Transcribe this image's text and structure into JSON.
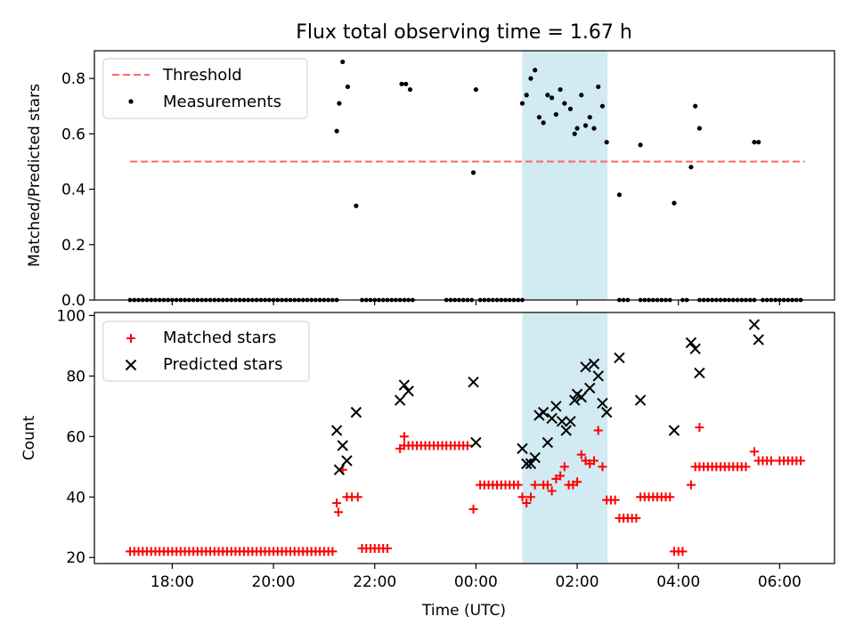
{
  "chart_data": {
    "title": "Flux total observing time = 1.67 h",
    "xlabel": "Time (UTC)",
    "x_ticks": [
      "18:00",
      "20:00",
      "22:00",
      "00:00",
      "02:00",
      "04:00",
      "06:00"
    ],
    "highlight_span": {
      "start": "00:55",
      "end": "02:36",
      "color": "#add8e6"
    },
    "panels": [
      {
        "type": "scatter",
        "ylabel": "Matched/Predicted stars",
        "ylim": [
          0.0,
          0.9
        ],
        "y_ticks": [
          "0.0",
          "0.2",
          "0.4",
          "0.6",
          "0.8"
        ],
        "legend": {
          "placement": "upper-left",
          "entries": [
            {
              "label": "Threshold",
              "style": "dashed-line",
              "color": "#ff6666"
            },
            {
              "label": "Measurements",
              "style": "dot",
              "color": "#000000"
            }
          ]
        },
        "threshold": {
          "value": 0.5,
          "x_start": "17:10",
          "x_end": "06:30",
          "color": "#ff6666"
        },
        "measurements_color": "#000000",
        "zero_run_ranges": [
          [
            "17:10",
            "21:15"
          ],
          [
            "21:45",
            "22:45"
          ],
          [
            "23:25",
            "23:55"
          ],
          [
            "00:05",
            "00:55"
          ],
          [
            "02:50",
            "03:00"
          ],
          [
            "03:15",
            "03:50"
          ],
          [
            "04:05",
            "04:10"
          ],
          [
            "04:25",
            "05:30"
          ],
          [
            "05:40",
            "06:25"
          ]
        ],
        "measurements": [
          [
            "21:15",
            0.61
          ],
          [
            "21:18",
            0.71
          ],
          [
            "21:22",
            0.86
          ],
          [
            "21:28",
            0.77
          ],
          [
            "21:38",
            0.34
          ],
          [
            "22:32",
            0.78
          ],
          [
            "22:37",
            0.78
          ],
          [
            "22:42",
            0.76
          ],
          [
            "23:57",
            0.46
          ],
          [
            "24:00",
            0.76
          ],
          [
            "24:55",
            0.71
          ],
          [
            "25:00",
            0.74
          ],
          [
            "25:05",
            0.8
          ],
          [
            "25:10",
            0.83
          ],
          [
            "25:15",
            0.66
          ],
          [
            "25:20",
            0.64
          ],
          [
            "25:25",
            0.74
          ],
          [
            "25:30",
            0.73
          ],
          [
            "25:35",
            0.67
          ],
          [
            "25:40",
            0.76
          ],
          [
            "25:45",
            0.71
          ],
          [
            "25:52",
            0.69
          ],
          [
            "25:57",
            0.6
          ],
          [
            "26:00",
            0.62
          ],
          [
            "26:05",
            0.74
          ],
          [
            "26:10",
            0.63
          ],
          [
            "26:15",
            0.66
          ],
          [
            "26:20",
            0.62
          ],
          [
            "26:25",
            0.77
          ],
          [
            "26:30",
            0.7
          ],
          [
            "26:35",
            0.57
          ],
          [
            "26:50",
            0.38
          ],
          [
            "27:15",
            0.56
          ],
          [
            "27:55",
            0.35
          ],
          [
            "28:15",
            0.48
          ],
          [
            "28:20",
            0.7
          ],
          [
            "28:25",
            0.62
          ],
          [
            "29:30",
            0.57
          ],
          [
            "29:35",
            0.57
          ]
        ]
      },
      {
        "type": "scatter",
        "ylabel": "Count",
        "ylim": [
          18,
          101
        ],
        "y_ticks": [
          "20",
          "40",
          "60",
          "80",
          "100"
        ],
        "legend": {
          "placement": "upper-left",
          "entries": [
            {
              "label": "Matched stars",
              "style": "plus",
              "color": "#ff0000"
            },
            {
              "label": "Predicted stars",
              "style": "x",
              "color": "#000000"
            }
          ]
        },
        "matched_runs": [
          {
            "from": "17:10",
            "to": "21:10",
            "value": 22
          },
          {
            "from": "21:45",
            "to": "22:15",
            "value": 23
          },
          {
            "from": "22:35",
            "to": "23:50",
            "value": 57
          },
          {
            "from": "00:05",
            "to": "00:50",
            "value": 44
          },
          {
            "from": "02:35",
            "to": "02:45",
            "value": 39
          },
          {
            "from": "02:50",
            "to": "03:10",
            "value": 33
          },
          {
            "from": "03:15",
            "to": "03:50",
            "value": 40
          },
          {
            "from": "03:55",
            "to": "04:05",
            "value": 22
          },
          {
            "from": "04:20",
            "to": "05:20",
            "value": 50
          },
          {
            "from": "05:35",
            "to": "05:50",
            "value": 52
          },
          {
            "from": "06:00",
            "to": "06:25",
            "value": 52
          }
        ],
        "matched_points": [
          [
            "21:15",
            38
          ],
          [
            "21:17",
            35
          ],
          [
            "21:22",
            49
          ],
          [
            "21:27",
            40
          ],
          [
            "21:33",
            40
          ],
          [
            "21:40",
            40
          ],
          [
            "22:30",
            56
          ],
          [
            "22:35",
            60
          ],
          [
            "23:57",
            36
          ],
          [
            "24:55",
            40
          ],
          [
            "25:00",
            38
          ],
          [
            "25:05",
            40
          ],
          [
            "25:10",
            44
          ],
          [
            "25:20",
            44
          ],
          [
            "25:25",
            44
          ],
          [
            "25:30",
            42
          ],
          [
            "25:35",
            46
          ],
          [
            "25:40",
            47
          ],
          [
            "25:45",
            50
          ],
          [
            "25:50",
            44
          ],
          [
            "25:55",
            44
          ],
          [
            "26:00",
            45
          ],
          [
            "26:05",
            54
          ],
          [
            "26:10",
            52
          ],
          [
            "26:15",
            51
          ],
          [
            "26:20",
            52
          ],
          [
            "26:25",
            62
          ],
          [
            "26:30",
            50
          ],
          [
            "28:15",
            44
          ],
          [
            "28:25",
            63
          ],
          [
            "29:30",
            55
          ]
        ],
        "predicted_points": [
          [
            "21:15",
            62
          ],
          [
            "21:18",
            49
          ],
          [
            "21:22",
            57
          ],
          [
            "21:27",
            52
          ],
          [
            "21:38",
            68
          ],
          [
            "22:30",
            72
          ],
          [
            "22:35",
            77
          ],
          [
            "22:40",
            75
          ],
          [
            "23:57",
            78
          ],
          [
            "24:00",
            58
          ],
          [
            "24:55",
            56
          ],
          [
            "25:00",
            51
          ],
          [
            "25:05",
            51
          ],
          [
            "25:10",
            53
          ],
          [
            "25:15",
            67
          ],
          [
            "25:20",
            68
          ],
          [
            "25:25",
            58
          ],
          [
            "25:30",
            66
          ],
          [
            "25:35",
            70
          ],
          [
            "25:42",
            65
          ],
          [
            "25:47",
            62
          ],
          [
            "25:52",
            65
          ],
          [
            "25:57",
            72
          ],
          [
            "26:00",
            74
          ],
          [
            "26:05",
            73
          ],
          [
            "26:10",
            83
          ],
          [
            "26:15",
            76
          ],
          [
            "26:20",
            84
          ],
          [
            "26:25",
            80
          ],
          [
            "26:30",
            71
          ],
          [
            "26:35",
            68
          ],
          [
            "26:50",
            86
          ],
          [
            "27:15",
            72
          ],
          [
            "27:55",
            62
          ],
          [
            "28:15",
            91
          ],
          [
            "28:20",
            89
          ],
          [
            "28:25",
            81
          ],
          [
            "29:30",
            97
          ],
          [
            "29:35",
            92
          ]
        ]
      }
    ]
  }
}
